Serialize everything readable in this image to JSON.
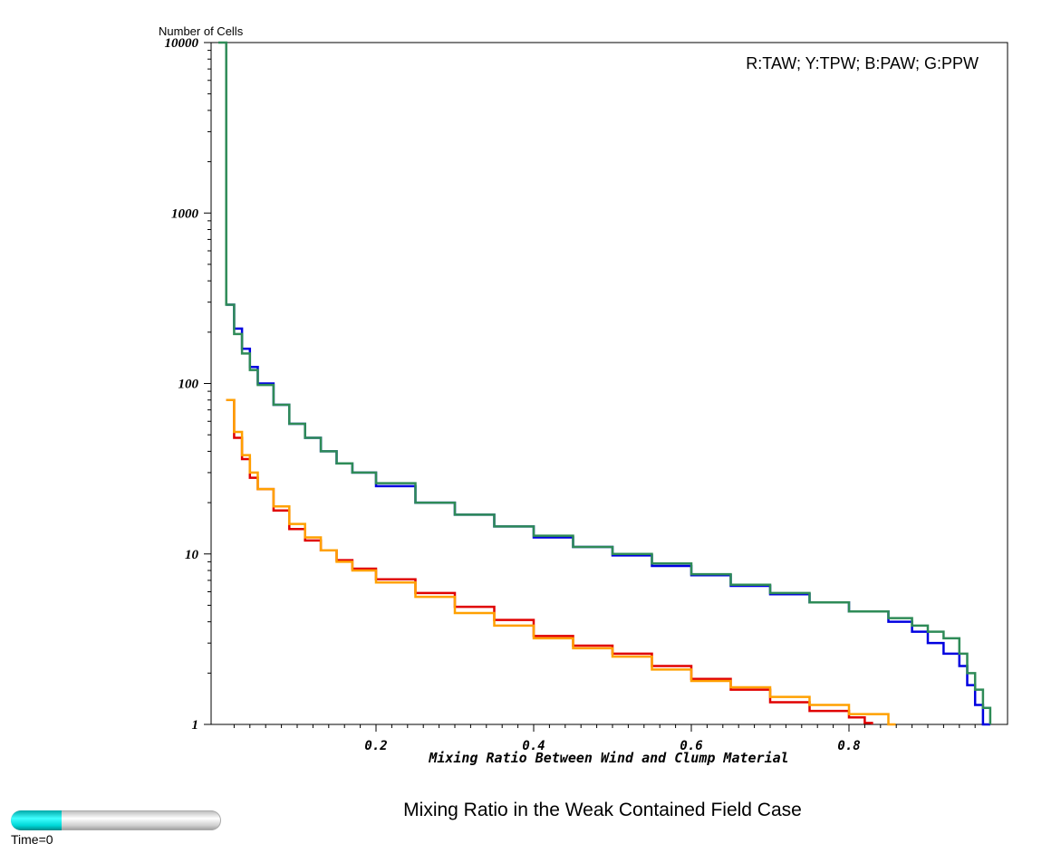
{
  "chart_data": {
    "type": "line",
    "step": true,
    "ylabel": "Number of Cells",
    "xlabel": "Mixing Ratio Between Wind and Clump Material",
    "title": "Mixing Ratio in the Weak Contained Field Case",
    "legend": "R:TAW; Y:TPW; B:PAW; G:PPW",
    "legend_position": "top-right",
    "yscale": "log",
    "ylim": [
      1,
      10000
    ],
    "xlim": [
      0.0,
      1.0
    ],
    "yticks": [
      "1",
      "10",
      "100",
      "1000",
      "10000"
    ],
    "xticks": [
      "0.2",
      "0.4",
      "0.6",
      "0.8"
    ],
    "grid": false,
    "series": [
      {
        "name": "R:TAW",
        "color": "#e00000",
        "points": [
          [
            0.01,
            80
          ],
          [
            0.02,
            48
          ],
          [
            0.03,
            36
          ],
          [
            0.04,
            28
          ],
          [
            0.05,
            24
          ],
          [
            0.07,
            18
          ],
          [
            0.09,
            14
          ],
          [
            0.11,
            12
          ],
          [
            0.13,
            10.5
          ],
          [
            0.15,
            9.2
          ],
          [
            0.17,
            8.2
          ],
          [
            0.2,
            7.1
          ],
          [
            0.25,
            5.9
          ],
          [
            0.3,
            4.9
          ],
          [
            0.35,
            4.1
          ],
          [
            0.4,
            3.3
          ],
          [
            0.45,
            2.9
          ],
          [
            0.5,
            2.6
          ],
          [
            0.55,
            2.2
          ],
          [
            0.6,
            1.85
          ],
          [
            0.65,
            1.6
          ],
          [
            0.7,
            1.35
          ],
          [
            0.75,
            1.2
          ],
          [
            0.8,
            1.1
          ],
          [
            0.82,
            1.02
          ]
        ]
      },
      {
        "name": "Y:TPW",
        "color": "#ffa000",
        "points": [
          [
            0.01,
            80
          ],
          [
            0.02,
            52
          ],
          [
            0.03,
            38
          ],
          [
            0.04,
            30
          ],
          [
            0.05,
            24
          ],
          [
            0.07,
            19
          ],
          [
            0.09,
            15
          ],
          [
            0.11,
            12.5
          ],
          [
            0.13,
            10.5
          ],
          [
            0.15,
            9.0
          ],
          [
            0.17,
            8.0
          ],
          [
            0.2,
            6.8
          ],
          [
            0.25,
            5.6
          ],
          [
            0.3,
            4.5
          ],
          [
            0.35,
            3.8
          ],
          [
            0.4,
            3.2
          ],
          [
            0.45,
            2.8
          ],
          [
            0.5,
            2.5
          ],
          [
            0.55,
            2.1
          ],
          [
            0.6,
            1.8
          ],
          [
            0.65,
            1.65
          ],
          [
            0.7,
            1.45
          ],
          [
            0.75,
            1.3
          ],
          [
            0.8,
            1.15
          ],
          [
            0.85,
            1.0
          ]
        ]
      },
      {
        "name": "B:PAW",
        "color": "#0000e0",
        "points": [
          [
            0.01,
            290
          ],
          [
            0.02,
            210
          ],
          [
            0.03,
            160
          ],
          [
            0.04,
            125
          ],
          [
            0.05,
            100
          ],
          [
            0.07,
            75
          ],
          [
            0.09,
            58
          ],
          [
            0.11,
            48
          ],
          [
            0.13,
            40
          ],
          [
            0.15,
            34
          ],
          [
            0.17,
            30
          ],
          [
            0.2,
            25
          ],
          [
            0.25,
            20
          ],
          [
            0.3,
            17
          ],
          [
            0.35,
            14.5
          ],
          [
            0.4,
            12.5
          ],
          [
            0.45,
            11
          ],
          [
            0.5,
            9.8
          ],
          [
            0.55,
            8.5
          ],
          [
            0.6,
            7.5
          ],
          [
            0.65,
            6.5
          ],
          [
            0.7,
            5.8
          ],
          [
            0.75,
            5.2
          ],
          [
            0.8,
            4.6
          ],
          [
            0.85,
            4.0
          ],
          [
            0.88,
            3.5
          ],
          [
            0.9,
            3.0
          ],
          [
            0.92,
            2.6
          ],
          [
            0.94,
            2.2
          ],
          [
            0.95,
            1.7
          ],
          [
            0.96,
            1.3
          ],
          [
            0.97,
            1.0
          ]
        ]
      },
      {
        "name": "G:PPW",
        "color": "#2e8b57",
        "points": [
          [
            0.0,
            10000
          ],
          [
            0.01,
            290
          ],
          [
            0.02,
            195
          ],
          [
            0.03,
            150
          ],
          [
            0.04,
            120
          ],
          [
            0.05,
            98
          ],
          [
            0.07,
            75
          ],
          [
            0.09,
            58
          ],
          [
            0.11,
            48
          ],
          [
            0.13,
            40
          ],
          [
            0.15,
            34
          ],
          [
            0.17,
            30
          ],
          [
            0.2,
            26
          ],
          [
            0.25,
            20
          ],
          [
            0.3,
            17
          ],
          [
            0.35,
            14.5
          ],
          [
            0.4,
            12.8
          ],
          [
            0.45,
            11
          ],
          [
            0.5,
            10
          ],
          [
            0.55,
            8.8
          ],
          [
            0.6,
            7.6
          ],
          [
            0.65,
            6.6
          ],
          [
            0.7,
            5.9
          ],
          [
            0.75,
            5.2
          ],
          [
            0.8,
            4.6
          ],
          [
            0.85,
            4.2
          ],
          [
            0.88,
            3.8
          ],
          [
            0.9,
            3.5
          ],
          [
            0.92,
            3.2
          ],
          [
            0.94,
            2.6
          ],
          [
            0.95,
            2.0
          ],
          [
            0.96,
            1.6
          ],
          [
            0.97,
            1.25
          ]
        ]
      }
    ]
  },
  "player": {
    "time_label": "Time=0",
    "progress": 0.24
  }
}
